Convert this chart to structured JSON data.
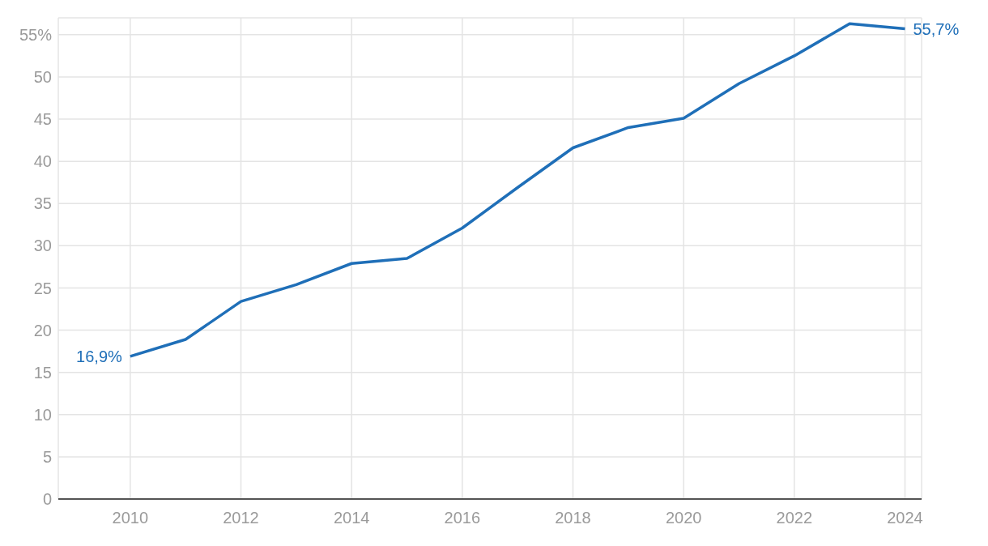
{
  "chart_data": {
    "type": "line",
    "x": [
      2010,
      2011,
      2012,
      2013,
      2014,
      2015,
      2016,
      2017,
      2018,
      2019,
      2020,
      2021,
      2022,
      2023,
      2024
    ],
    "series": [
      {
        "color": "#1f6fb8",
        "values": [
          16.9,
          18.9,
          23.4,
          25.4,
          27.9,
          28.5,
          32.1,
          36.9,
          41.6,
          44.0,
          45.1,
          49.2,
          52.5,
          56.3,
          55.7
        ],
        "value_labels": [
          "16,9%",
          null,
          null,
          null,
          null,
          null,
          null,
          null,
          null,
          null,
          null,
          null,
          null,
          null,
          "55,7%"
        ]
      }
    ],
    "xlim": [
      2008.7,
      2024.3
    ],
    "xticks": [
      2010,
      2012,
      2014,
      2016,
      2018,
      2020,
      2022,
      2024
    ],
    "ylim": [
      0,
      57
    ],
    "yticks": [
      0,
      5,
      10,
      15,
      20,
      25,
      30,
      35,
      40,
      45,
      50,
      {
        "value": 55,
        "label": "55%"
      }
    ],
    "grid": true,
    "marker": "none",
    "line_style": "solid"
  }
}
